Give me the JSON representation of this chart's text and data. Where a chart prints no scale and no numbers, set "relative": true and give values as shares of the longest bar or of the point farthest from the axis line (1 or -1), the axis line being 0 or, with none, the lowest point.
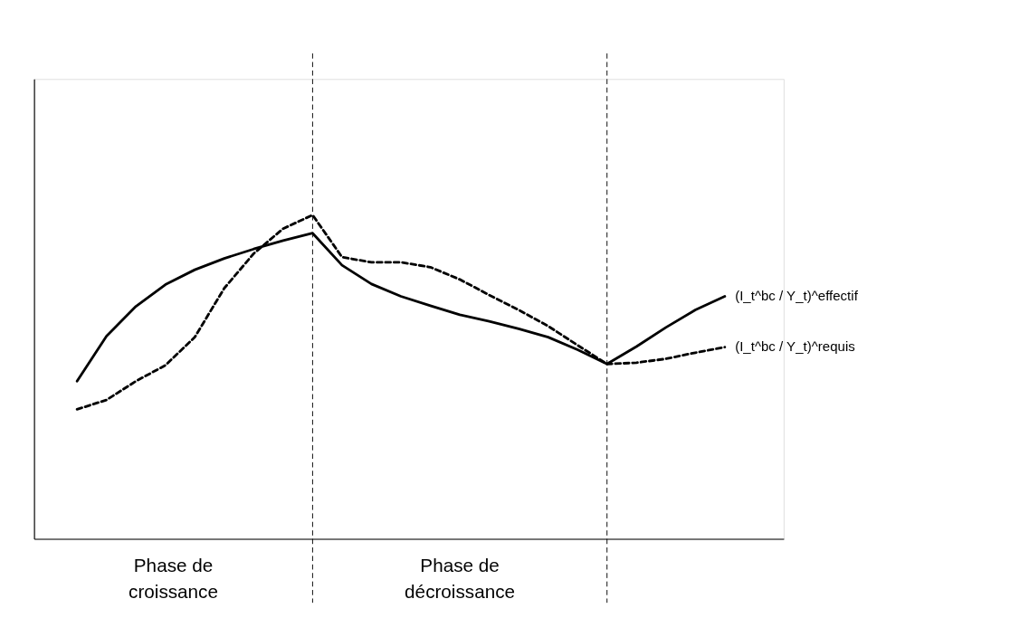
{
  "chart_data": {
    "type": "line",
    "relative": true,
    "categories": [
      null,
      null,
      null,
      null,
      null,
      null,
      null,
      null,
      null,
      null,
      null,
      null,
      null,
      null,
      null,
      null,
      null,
      null,
      null,
      null,
      null,
      null,
      null
    ],
    "series": [
      {
        "name": "(I_t^bc / Y_t)^effectif",
        "color": "#000000",
        "line_style": "solid",
        "values": [
          0.487,
          0.626,
          0.718,
          0.785,
          0.831,
          0.866,
          0.895,
          0.921,
          0.944,
          0.845,
          0.787,
          0.749,
          0.72,
          0.692,
          0.672,
          0.649,
          0.623,
          0.584,
          0.54,
          0.594,
          0.653,
          0.707,
          0.749
        ]
      },
      {
        "name": "(I_t^bc / Y_t)^requis",
        "color": "#000000",
        "line_style": "dashed",
        "values": [
          0.4,
          0.429,
          0.487,
          0.536,
          0.623,
          0.774,
          0.881,
          0.958,
          1.0,
          0.87,
          0.854,
          0.854,
          0.839,
          0.801,
          0.753,
          0.707,
          0.657,
          0.598,
          0.54,
          0.544,
          0.556,
          0.575,
          0.592
        ]
      }
    ],
    "annotations": [
      "Phase de croissance",
      "Phase de décroissance"
    ]
  }
}
